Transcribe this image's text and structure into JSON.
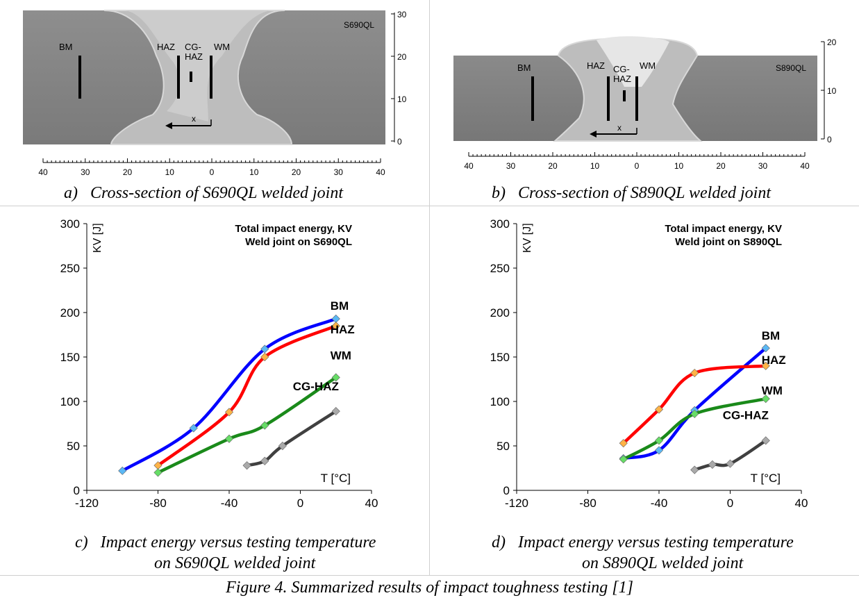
{
  "panels": {
    "a": {
      "prefix": "a)",
      "caption": "Cross-section of S690QL welded joint",
      "steel_label": "S690QL",
      "zones": {
        "bm": "BM",
        "haz": "HAZ",
        "cghaz1": "CG-",
        "cghaz2": "HAZ",
        "wm": "WM"
      },
      "x_marker": "x",
      "scale_right": [
        "30",
        "20",
        "10",
        "0"
      ],
      "ruler": [
        "40",
        "30",
        "20",
        "10",
        "0",
        "10",
        "20",
        "30",
        "40"
      ]
    },
    "b": {
      "prefix": "b)",
      "caption": "Cross-section of S890QL welded joint",
      "steel_label": "S890QL",
      "zones": {
        "bm": "BM",
        "haz": "HAZ",
        "cghaz1": "CG-",
        "cghaz2": "HAZ",
        "wm": "WM"
      },
      "x_marker": "x",
      "scale_right": [
        "20",
        "10",
        "0"
      ],
      "ruler": [
        "40",
        "30",
        "20",
        "10",
        "0",
        "10",
        "20",
        "30",
        "40"
      ]
    },
    "c": {
      "prefix": "c)",
      "caption_line1": "Impact energy versus testing temperature",
      "caption_line2": "on S690QL welded joint"
    },
    "d": {
      "prefix": "d)",
      "caption_line1": "Impact energy versus testing temperature",
      "caption_line2": "on S890QL welded joint"
    }
  },
  "figure_caption": "Figure 4. Summarized results of impact toughness testing [1]",
  "chart_data": [
    {
      "type": "line",
      "title": "Total impact energy, KV",
      "subtitle": "Weld joint on S690QL",
      "xlabel": "T [°C]",
      "ylabel": "KV [J]",
      "xlim": [
        -120,
        40
      ],
      "ylim": [
        0,
        300
      ],
      "xticks": [
        -120,
        -80,
        -40,
        0,
        40
      ],
      "yticks": [
        0,
        50,
        100,
        150,
        200,
        250,
        300
      ],
      "series": [
        {
          "name": "BM",
          "color": "#0000ff",
          "marker": "#5bb8f5",
          "x": [
            -100,
            -60,
            -20,
            20
          ],
          "y": [
            22,
            70,
            159,
            193
          ]
        },
        {
          "name": "HAZ",
          "color": "#ff0000",
          "marker": "#ffb347",
          "x": [
            -80,
            -40,
            -20,
            20
          ],
          "y": [
            28,
            88,
            150,
            185
          ]
        },
        {
          "name": "WM",
          "color": "#1a8a1a",
          "marker": "#66dd66",
          "x": [
            -80,
            -40,
            -20,
            20
          ],
          "y": [
            20,
            58,
            73,
            127
          ]
        },
        {
          "name": "CG-HAZ",
          "color": "#404040",
          "marker": "#aaaaaa",
          "x": [
            -30,
            -20,
            -10,
            20
          ],
          "y": [
            28,
            33,
            50,
            89
          ]
        }
      ]
    },
    {
      "type": "line",
      "title": "Total impact energy, KV",
      "subtitle": "Weld joint on S890QL",
      "xlabel": "T [°C]",
      "ylabel": "KV [J]",
      "xlim": [
        -120,
        40
      ],
      "ylim": [
        0,
        300
      ],
      "xticks": [
        -120,
        -80,
        -40,
        0,
        40
      ],
      "yticks": [
        0,
        50,
        100,
        150,
        200,
        250,
        300
      ],
      "series": [
        {
          "name": "BM",
          "color": "#0000ff",
          "marker": "#5bb8f5",
          "x": [
            -60,
            -40,
            -20,
            20
          ],
          "y": [
            36,
            45,
            90,
            160
          ]
        },
        {
          "name": "HAZ",
          "color": "#ff0000",
          "marker": "#ffb347",
          "x": [
            -60,
            -40,
            -20,
            20
          ],
          "y": [
            53,
            91,
            132,
            140
          ]
        },
        {
          "name": "WM",
          "color": "#1a8a1a",
          "marker": "#66dd66",
          "x": [
            -60,
            -40,
            -20,
            20
          ],
          "y": [
            35,
            56,
            86,
            103
          ]
        },
        {
          "name": "CG-HAZ",
          "color": "#404040",
          "marker": "#aaaaaa",
          "x": [
            -20,
            -10,
            0,
            20
          ],
          "y": [
            23,
            29,
            30,
            56
          ]
        }
      ]
    }
  ]
}
